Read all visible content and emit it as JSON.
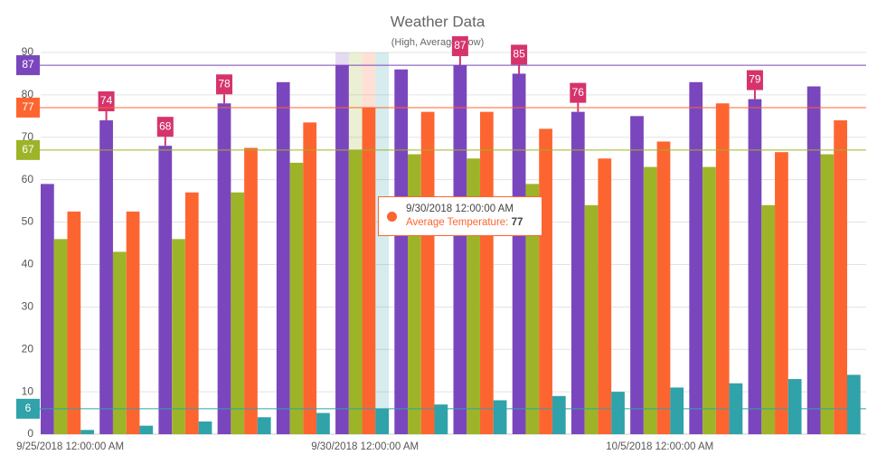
{
  "chart_data": {
    "type": "bar",
    "title": "Weather Data",
    "subtitle": "(High, Average, Low)",
    "categories": [
      "9/25/2018 12:00:00 AM",
      null,
      null,
      null,
      null,
      "9/30/2018 12:00:00 AM",
      null,
      null,
      null,
      null,
      "10/5/2018 12:00:00 AM",
      null,
      null,
      null
    ],
    "series": [
      {
        "color": "#7a46bd",
        "values": [
          59,
          74,
          68,
          78,
          83,
          87,
          86,
          87,
          85,
          76,
          75,
          83,
          79,
          82
        ],
        "value_labels": [
          null,
          "74",
          "68",
          "78",
          null,
          null,
          null,
          "87",
          "85",
          "76",
          null,
          null,
          "79",
          null
        ]
      },
      {
        "color": "#9db428",
        "values": [
          46,
          43,
          46,
          57,
          64,
          67,
          66,
          65,
          59,
          54,
          63,
          63,
          54,
          66
        ]
      },
      {
        "name": "Average Temperature",
        "color": "#fd6530",
        "values": [
          52.5,
          52.5,
          57,
          67.5,
          73.5,
          77,
          76,
          76,
          72,
          65,
          69,
          78,
          66.5,
          74
        ]
      },
      {
        "color": "#30a2a9",
        "values": [
          1,
          2,
          3,
          4,
          5,
          6,
          7,
          8,
          9,
          10,
          11,
          12,
          13,
          14
        ]
      }
    ],
    "ylim": [
      0,
      90
    ],
    "yticks": [
      0,
      10,
      20,
      30,
      40,
      50,
      60,
      70,
      80,
      90
    ],
    "grid": true,
    "highlight_index": 5,
    "tooltip_series": 2,
    "label_color": "#d6336c"
  }
}
